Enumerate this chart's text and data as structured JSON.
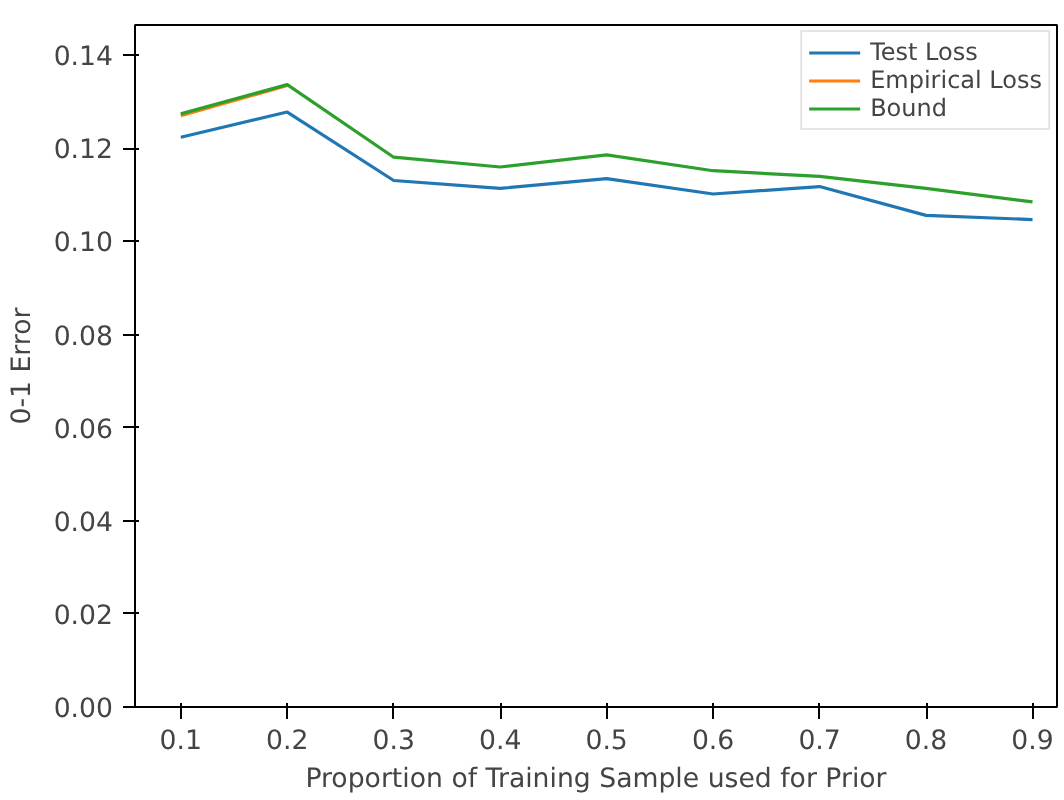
{
  "chart_data": {
    "type": "line",
    "xlabel": "Proportion of Training Sample used for Prior",
    "ylabel": "0-1 Error",
    "x": [
      0.1,
      0.2,
      0.3,
      0.4,
      0.5,
      0.6,
      0.7,
      0.8,
      0.9
    ],
    "series": [
      {
        "name": "Test Loss",
        "color": "#1f77b4",
        "values": [
          0.1224,
          0.1278,
          0.1131,
          0.1114,
          0.1135,
          0.1102,
          0.1118,
          0.1056,
          0.1047
        ]
      },
      {
        "name": "Empirical Loss",
        "color": "#ff7f0e",
        "values": [
          0.127,
          0.1335,
          null,
          null,
          null,
          null,
          null,
          null,
          null
        ]
      },
      {
        "name": "Bound",
        "color": "#2ca02c",
        "values": [
          0.1274,
          0.1337,
          0.1181,
          0.116,
          0.1186,
          0.1152,
          0.114,
          0.1114,
          0.1085
        ]
      }
    ],
    "xlim": [
      0.057,
      0.923
    ],
    "ylim": [
      0,
      0.1465
    ],
    "xticks": [
      0.1,
      0.2,
      0.3,
      0.4,
      0.5,
      0.6,
      0.7,
      0.8,
      0.9
    ],
    "yticks": [
      {
        "value": 0,
        "label": "0.00"
      },
      {
        "value": 0.02,
        "label": "0.02"
      },
      {
        "value": 0.04,
        "label": "0.04"
      },
      {
        "value": 0.06,
        "label": "0.06"
      },
      {
        "value": 0.08,
        "label": "0.08"
      },
      {
        "value": 0.1,
        "label": "0.10"
      },
      {
        "value": 0.12,
        "label": "0.12"
      },
      {
        "value": 0.14,
        "label": "0.14"
      }
    ],
    "legend": "top right",
    "grid": false,
    "marker": "none",
    "line_style": "solid"
  }
}
